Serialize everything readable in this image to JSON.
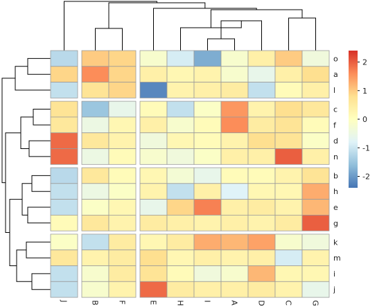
{
  "chart_data": {
    "type": "heatmap",
    "title": "",
    "rows": [
      "o",
      "a",
      "l",
      "c",
      "f",
      "d",
      "n",
      "b",
      "h",
      "e",
      "g",
      "k",
      "m",
      "i",
      "j"
    ],
    "columns": [
      "J",
      "B",
      "F",
      "E",
      "H",
      "I",
      "A",
      "D",
      "C",
      "G"
    ],
    "row_splits": [
      3,
      4,
      4,
      4
    ],
    "column_splits": [
      1,
      2,
      7
    ],
    "values": [
      [
        -1.2,
        1.0,
        0.9,
        -0.2,
        -0.9,
        -1.8,
        -0.2,
        0.4,
        1.0,
        -0.4
      ],
      [
        0.9,
        1.6,
        0.9,
        0.4,
        0.2,
        0.3,
        -0.2,
        -0.6,
        0.4,
        0.8
      ],
      [
        -1.1,
        0.7,
        0.9,
        -2.2,
        0.3,
        0.4,
        0.5,
        -1.1,
        0.1,
        0.4
      ],
      [
        0.7,
        -1.5,
        -0.6,
        0.1,
        -1.1,
        -0.1,
        1.5,
        0.3,
        0.8,
        0.6
      ],
      [
        0.6,
        -0.5,
        0.2,
        0.4,
        -0.2,
        0.1,
        1.6,
        0.5,
        0.7,
        0.1
      ],
      [
        1.9,
        0.6,
        0.3,
        -0.4,
        0.2,
        0.1,
        0.3,
        0.8,
        0.7,
        -0.1
      ],
      [
        1.9,
        -0.5,
        0.1,
        -0.2,
        -0.4,
        -0.1,
        0.4,
        0.4,
        2.0,
        0.4
      ],
      [
        -1.2,
        0.6,
        0.1,
        0.2,
        -0.3,
        -0.6,
        0.1,
        0.1,
        0.3,
        0.7
      ],
      [
        -1.1,
        -0.5,
        -0.1,
        0.3,
        -1.1,
        0.4,
        -0.8,
        0.2,
        0.2,
        1.3
      ],
      [
        -1.1,
        -0.1,
        0.2,
        -0.6,
        0.9,
        1.7,
        0.4,
        0.5,
        0.3,
        1.2
      ],
      [
        0.1,
        0.6,
        0.3,
        0.5,
        0.4,
        0.3,
        0.4,
        0.3,
        0.5,
        2.0
      ],
      [
        -0.1,
        -1.1,
        0.5,
        0.2,
        0.5,
        1.3,
        1.2,
        1.4,
        -0.2,
        -0.4
      ],
      [
        0.6,
        0.3,
        0.5,
        0.8,
        0.2,
        0.4,
        0.3,
        0.4,
        -0.9,
        0.3
      ],
      [
        -1.1,
        -0.2,
        0.5,
        0.7,
        0.1,
        -0.4,
        -0.2,
        1.2,
        0.2,
        0.2
      ],
      [
        -1.1,
        -0.2,
        0.3,
        1.9,
        0.5,
        0.4,
        0.4,
        0.5,
        0.3,
        -0.6
      ]
    ],
    "legend": {
      "ticks": [
        2,
        1,
        0,
        -1,
        -2
      ],
      "tick_labels": [
        "2",
        "1",
        "0",
        "-1",
        "-2"
      ],
      "range": [
        -2.4,
        2.4
      ],
      "colors": [
        "#4575b4",
        "#91bfdb",
        "#e0f3f8",
        "#ffffbf",
        "#fee090",
        "#fc8d59",
        "#d73027"
      ],
      "placement": "right"
    },
    "row_dendrogram": "left",
    "column_dendrogram": "top",
    "cell_border_color": "#9a9a9a"
  }
}
